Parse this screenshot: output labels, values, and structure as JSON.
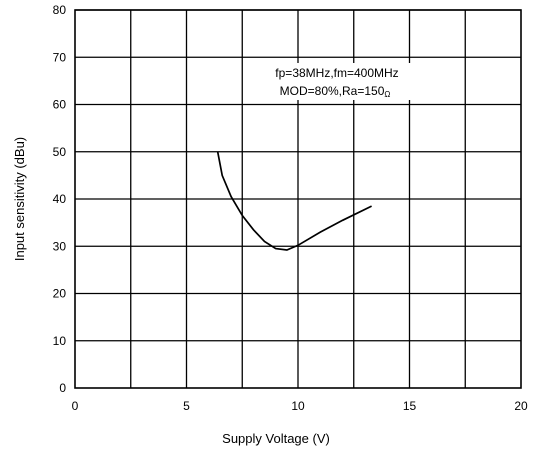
{
  "chart_data": {
    "type": "line",
    "xlabel": "Supply Voltage  (V)",
    "ylabel": "Input sensitivity  (dBu)",
    "xlim": [
      0,
      20
    ],
    "ylim": [
      0,
      80
    ],
    "x_ticks": [
      "0",
      "5",
      "10",
      "15",
      "20"
    ],
    "y_ticks": [
      "0",
      "10",
      "20",
      "30",
      "40",
      "50",
      "60",
      "70",
      "80"
    ],
    "grid": true,
    "annotation": {
      "line1": "fp=38MHz,fm=400MHz",
      "line2": "MOD=80%,Ra=150",
      "line2_sub": "Ω"
    },
    "series": [
      {
        "x": [
          6.4,
          6.6,
          7.0,
          7.5,
          8.0,
          8.5,
          9.0,
          9.5,
          10.0,
          11.0,
          12.0,
          13.3
        ],
        "values": [
          50,
          45,
          40.5,
          36.5,
          33.5,
          31,
          29.5,
          29.2,
          30.2,
          33,
          35.5,
          38.5
        ]
      }
    ]
  }
}
